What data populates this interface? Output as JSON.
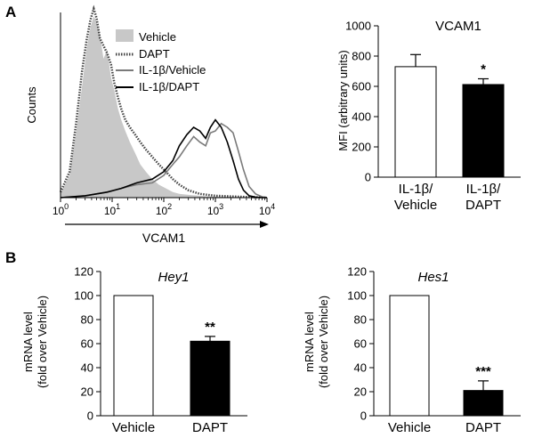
{
  "panel_labels": {
    "a": "A",
    "b": "B"
  },
  "chart_data": [
    {
      "type": "line",
      "id": "histogram",
      "ylabel": "Counts",
      "xlabel": "VCAM1",
      "x_scale": "log",
      "xlim": [
        1,
        10000
      ],
      "ylim": [
        0,
        100
      ],
      "x_ticks": [
        {
          "base": "10",
          "exp": "0"
        },
        {
          "base": "10",
          "exp": "1"
        },
        {
          "base": "10",
          "exp": "2"
        },
        {
          "base": "10",
          "exp": "3"
        },
        {
          "base": "10",
          "exp": "4"
        }
      ],
      "legend": [
        "Vehicle",
        "DAPT",
        "IL-1β/Vehicle",
        "IL-1β/DAPT"
      ],
      "series": [
        {
          "name": "Vehicle",
          "style": "filled",
          "color": "#c8c8c8",
          "x": [
            1,
            1.5,
            2,
            2.6,
            3.2,
            3.8,
            4.4,
            5.0,
            5.8,
            6.8,
            8,
            9.5,
            11,
            13,
            15,
            18,
            22,
            28,
            35,
            45,
            60,
            80,
            110,
            150,
            200,
            300,
            500,
            1000,
            3000,
            10000
          ],
          "y": [
            2,
            12,
            35,
            60,
            80,
            92,
            98,
            95,
            88,
            75,
            80,
            65,
            58,
            48,
            42,
            36,
            30,
            24,
            18,
            14,
            10,
            7,
            5,
            3,
            2,
            1.5,
            1,
            0.5,
            0.3,
            0
          ]
        },
        {
          "name": "DAPT",
          "style": "dotted",
          "color": "#444444",
          "x": [
            1,
            1.5,
            2,
            2.6,
            3.2,
            3.8,
            4.4,
            5.0,
            5.8,
            6.8,
            8,
            9.5,
            11,
            13,
            15,
            18,
            22,
            28,
            35,
            45,
            60,
            80,
            110,
            150,
            200,
            300,
            500,
            1000,
            3000,
            10000
          ],
          "y": [
            3,
            14,
            40,
            68,
            85,
            96,
            102,
            97,
            86,
            82,
            78,
            72,
            62,
            54,
            48,
            42,
            38,
            34,
            30,
            26,
            22,
            18,
            14,
            10,
            7,
            4,
            2,
            1,
            0.5,
            0
          ]
        },
        {
          "name": "IL-1β/Vehicle",
          "style": "solid",
          "color": "#7a7a7a",
          "x": [
            1,
            3,
            8,
            15,
            30,
            60,
            100,
            150,
            200,
            280,
            380,
            500,
            650,
            800,
            1000,
            1300,
            1700,
            2200,
            2800,
            3500,
            4500,
            6000,
            8000,
            10000
          ],
          "y": [
            0,
            1,
            3,
            5,
            7,
            8,
            12,
            18,
            22,
            28,
            33,
            30,
            28,
            35,
            36,
            40,
            38,
            35,
            25,
            15,
            6,
            2,
            0.5,
            0
          ]
        },
        {
          "name": "IL-1β/DAPT",
          "style": "solid",
          "color": "#000000",
          "x": [
            1,
            3,
            8,
            15,
            30,
            60,
            100,
            150,
            200,
            280,
            380,
            500,
            650,
            800,
            1000,
            1300,
            1700,
            2200,
            2800,
            3500,
            4500,
            6000,
            8000,
            10000
          ],
          "y": [
            0,
            1,
            3,
            5,
            8,
            10,
            14,
            20,
            28,
            34,
            38,
            36,
            32,
            38,
            42,
            38,
            30,
            20,
            10,
            4,
            1,
            0.3,
            0,
            0
          ]
        }
      ]
    },
    {
      "type": "bar",
      "id": "vcam1",
      "title": "VCAM1",
      "ylabel": "MFI (arbitrary units)",
      "ylim": [
        0,
        1000
      ],
      "y_ticks": [
        "0",
        "200",
        "400",
        "600",
        "800",
        "1000"
      ],
      "categories": [
        [
          "IL-1β/",
          "Vehicle"
        ],
        [
          "IL-1β/",
          "DAPT"
        ]
      ],
      "values": [
        730,
        612
      ],
      "errors": [
        80,
        38
      ],
      "fills": [
        "#ffffff",
        "#000000"
      ],
      "annotations": [
        "",
        "*"
      ]
    },
    {
      "type": "bar",
      "id": "hey1",
      "title": "Hey1",
      "ylabel": [
        "mRNA level",
        "(fold over Vehicle)"
      ],
      "ylim": [
        0,
        120
      ],
      "y_ticks": [
        "0",
        "20",
        "40",
        "60",
        "80",
        "100",
        "120"
      ],
      "categories": [
        "Vehicle",
        "DAPT"
      ],
      "values": [
        100,
        62
      ],
      "errors": [
        0,
        4
      ],
      "fills": [
        "#ffffff",
        "#000000"
      ],
      "annotations": [
        "",
        "**"
      ]
    },
    {
      "type": "bar",
      "id": "hes1",
      "title": "Hes1",
      "ylabel": [
        "mRNA level",
        "(fold over Vehicle)"
      ],
      "ylim": [
        0,
        120
      ],
      "y_ticks": [
        "0",
        "20",
        "40",
        "60",
        "80",
        "100",
        "120"
      ],
      "categories": [
        "Vehicle",
        "DAPT"
      ],
      "values": [
        100,
        21
      ],
      "errors": [
        0,
        8
      ],
      "fills": [
        "#ffffff",
        "#000000"
      ],
      "annotations": [
        "",
        "***"
      ]
    }
  ]
}
